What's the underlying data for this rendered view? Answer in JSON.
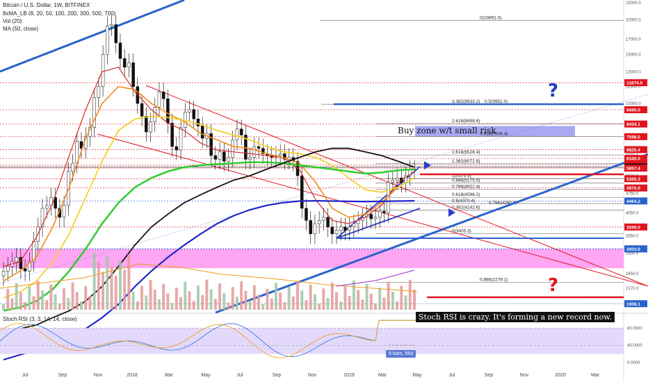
{
  "header": {
    "title": "Bitcoin / U.S. Dollar, 1W, BITFINEX",
    "indicators": [
      "8xMA_LB (8, 20, 50, 100, 200, 300, 500, 700)",
      "Vol (20)",
      "MA (50, close)"
    ]
  },
  "rsi_title": "Stoch RSI (3, 3, 14, 14, close)",
  "annotations": {
    "buy_zone": "Buy zone w/t small risk",
    "rsi_note": "Stoch RSI is crazy. It's forming a new record now.",
    "bars_badge": "8 bars, 56d",
    "question": "?"
  },
  "colors": {
    "accent_red": "#e0141e",
    "accent_blue": "#2962cc",
    "pink_zone": "#ff9cf2",
    "buy_zone": "#9e9ef2",
    "rsi_band": "#e3d9fb",
    "question_blue": "#1f3fbf",
    "question_red": "#e0141e"
  },
  "chart_data": {
    "type": "candlestick",
    "symbol": "Bitcoin / U.S. Dollar",
    "interval": "1W",
    "exchange": "BITFINEX",
    "price_axis": {
      "scale": "log",
      "ticks": [
        23000.0,
        20000.0,
        17000.0,
        15000.0,
        13000.0,
        11500.0,
        10000.0,
        8500.0,
        7500.0,
        6500.0,
        5500.0,
        4750.0,
        4050.0,
        3350.0,
        2900.0,
        2450.0,
        2170.0,
        1900.0
      ],
      "ticks_extra": [
        "8500.0",
        "5500.0",
        "2900.0"
      ],
      "highlighted": [
        {
          "value": "11874.0",
          "color": "#e0141e"
        },
        {
          "value": "9495.0",
          "color": "#e0141e"
        },
        {
          "value": "8434.1",
          "color": "#e0141e"
        },
        {
          "value": "7598.0",
          "color": "#e0141e"
        },
        {
          "value": "6825.4",
          "color": "#e0141e"
        },
        {
          "value": "6345.0",
          "color": "#e0141e"
        },
        {
          "value": "6006.2",
          "color": "#e0141e"
        },
        {
          "value": "5911.1",
          "color": "#111111"
        },
        {
          "value": "5857.4",
          "color": "#e0141e"
        },
        {
          "value": "5365.3",
          "color": "#e0141e"
        },
        {
          "value": "4970.0",
          "color": "#e0141e"
        },
        {
          "value": "4464.2",
          "color": "#2962cc"
        },
        {
          "value": "3599.0",
          "color": "#e0141e"
        },
        {
          "value": "3003.0",
          "color": "#2962cc"
        },
        {
          "value": "3003.0",
          "color": "#2962cc"
        },
        {
          "value": "1908.1",
          "color": "#2962cc"
        }
      ]
    },
    "time_axis": [
      "Jul",
      "Sep",
      "Nov",
      "2018",
      "Mar",
      "May",
      "Jul",
      "Sep",
      "Nov",
      "2019",
      "Mar",
      "May",
      "Jul",
      "Sep",
      "Nov",
      "2020",
      "Mar"
    ],
    "fib_levels": [
      {
        "label": "0(19891.0)",
        "value": 19891.0
      },
      {
        "label": "3.382(9933.2)",
        "value": 9933.2
      },
      {
        "label": "0.5(9952.0)",
        "value": 9952.0
      },
      {
        "label": "2.618(8458.6)",
        "value": 8458.6
      },
      {
        "label": "0.618(7606.4)",
        "value": 7606.4
      },
      {
        "label": "1.618(6528.4)",
        "value": 6528.4
      },
      {
        "label": "1.382(6072.8)",
        "value": 6072.8
      },
      {
        "label": "1(5375.5)",
        "value": 5375.5
      },
      {
        "label": "0.886(5175.5)",
        "value": 5175.5
      },
      {
        "label": "0.786(4922.4)",
        "value": 4922.4
      },
      {
        "label": "0.618(4598.2)",
        "value": 4598.2
      },
      {
        "label": "0.5(4370.4)",
        "value": 4370.4
      },
      {
        "label": "0.382(4142.6)",
        "value": 4142.6
      },
      {
        "label": "0.786(4290.9)",
        "value": 4290.9
      },
      {
        "label": "0(3405.3)",
        "value": 3405.3
      },
      {
        "label": "0.886(2279.1)",
        "value": 2279.1
      }
    ],
    "last_price": 5911.1,
    "stoch_rsi": {
      "title": "Stoch RSI (3, 3, 14, 14, close)",
      "ticks": [
        "80.0000",
        "40.0000",
        "0.0000"
      ],
      "band": [
        20,
        80
      ]
    }
  }
}
